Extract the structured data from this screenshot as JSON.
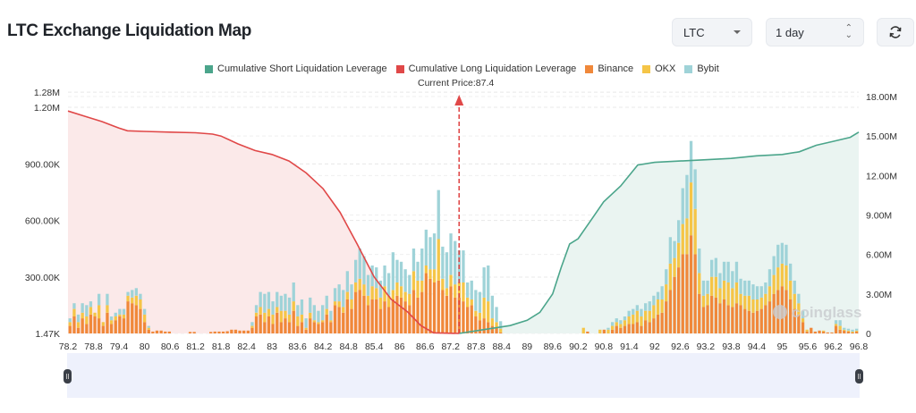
{
  "header": {
    "title": "LTC Exchange Liquidation Map",
    "coin_select": "LTC",
    "range_select": "1 day",
    "refresh_icon": "refresh-icon"
  },
  "chart_data": {
    "type": "bar",
    "title": "LTC Exchange Liquidation Map",
    "current_price_label": "Current Price:87.4",
    "current_price": 87.4,
    "legend": [
      {
        "name": "Cumulative Short Liquidation Leverage",
        "color": "#4ba58b"
      },
      {
        "name": "Cumulative Long Liquidation Leverage",
        "color": "#e04848"
      },
      {
        "name": "Binance",
        "color": "#f0883a"
      },
      {
        "name": "OKX",
        "color": "#f5c547"
      },
      {
        "name": "Bybit",
        "color": "#9fd3d8"
      }
    ],
    "legend_position": "top-center",
    "watermark": "coinglass",
    "x_range": [
      78.2,
      96.8
    ],
    "x_step": 0.1,
    "x_ticks": [
      "78.2",
      "78.8",
      "79.4",
      "80",
      "80.6",
      "81.2",
      "81.8",
      "82.4",
      "83",
      "83.6",
      "84.2",
      "84.8",
      "85.4",
      "86",
      "86.6",
      "87.2",
      "87.8",
      "88.4",
      "89",
      "89.6",
      "90.2",
      "90.8",
      "91.4",
      "92",
      "92.6",
      "93.2",
      "93.8",
      "94.4",
      "95",
      "95.6",
      "96.2",
      "96.8"
    ],
    "y_left": {
      "ticks": [
        "1.47K",
        "300.00K",
        "600.00K",
        "900.00K",
        "1.20M",
        "1.28M"
      ],
      "values": [
        1470,
        300000,
        600000,
        900000,
        1200000,
        1280000
      ],
      "range": [
        1470,
        1280000
      ]
    },
    "y_right": {
      "ticks": [
        "0",
        "3.00M",
        "6.00M",
        "9.00M",
        "12.00M",
        "15.00M",
        "18.00M"
      ],
      "values": [
        0,
        3000000,
        6000000,
        9000000,
        12000000,
        15000000,
        18000000
      ],
      "range": [
        0,
        18000000
      ]
    },
    "grid": true,
    "series": [
      {
        "name": "Binance",
        "stack": "left",
        "values": [
          40,
          90,
          30,
          80,
          50,
          100,
          90,
          80,
          40,
          110,
          50,
          70,
          90,
          80,
          170,
          160,
          150,
          130,
          60,
          20,
          10,
          15,
          15,
          10,
          10,
          0,
          0,
          0,
          0,
          8,
          8,
          0,
          0,
          0,
          8,
          10,
          10,
          10,
          12,
          20,
          20,
          15,
          15,
          15,
          30,
          90,
          100,
          60,
          90,
          50,
          110,
          60,
          80,
          60,
          120,
          40,
          60,
          20,
          80,
          60,
          50,
          60,
          100,
          60,
          150,
          140,
          110,
          180,
          130,
          220,
          230,
          200,
          150,
          180,
          180,
          130,
          170,
          140,
          180,
          200,
          190,
          170,
          150,
          230,
          190,
          220,
          320,
          290,
          270,
          280,
          230,
          200,
          250,
          190,
          190,
          170,
          140,
          150,
          90,
          70,
          80,
          60,
          40,
          30,
          5,
          0,
          0,
          0,
          0,
          0,
          0,
          0,
          0,
          0,
          0,
          0,
          0,
          0,
          0,
          0,
          0,
          0,
          0,
          0,
          0,
          10,
          0,
          0,
          0,
          20,
          0,
          20,
          40,
          30,
          40,
          50,
          50,
          60,
          40,
          70,
          60,
          80,
          100,
          110,
          170,
          230,
          300,
          350,
          420,
          420,
          520,
          420,
          210,
          140,
          150,
          200,
          190,
          160,
          180,
          150,
          140,
          160,
          150,
          130,
          120,
          110,
          120,
          130,
          150,
          170,
          210,
          230,
          250,
          230,
          180,
          130,
          100,
          60,
          10,
          30,
          10,
          15,
          10,
          5,
          5,
          40,
          20,
          15,
          10,
          5,
          10
        ],
        "_note": "values in K, approximate"
      },
      {
        "name": "OKX",
        "stack": "left",
        "values": [
          20,
          40,
          30,
          30,
          40,
          40,
          20,
          70,
          20,
          40,
          20,
          20,
          10,
          20,
          30,
          30,
          50,
          50,
          40,
          10,
          0,
          0,
          0,
          0,
          0,
          0,
          0,
          0,
          0,
          0,
          0,
          0,
          0,
          0,
          0,
          0,
          0,
          0,
          0,
          0,
          0,
          0,
          0,
          0,
          10,
          20,
          40,
          50,
          40,
          50,
          30,
          60,
          40,
          40,
          50,
          50,
          40,
          10,
          30,
          10,
          10,
          10,
          30,
          10,
          20,
          30,
          30,
          40,
          50,
          50,
          60,
          60,
          50,
          70,
          60,
          60,
          80,
          60,
          50,
          70,
          60,
          50,
          60,
          100,
          90,
          60,
          40,
          50,
          70,
          220,
          60,
          40,
          60,
          70,
          80,
          100,
          50,
          30,
          30,
          40,
          110,
          110,
          40,
          30,
          20,
          0,
          0,
          0,
          0,
          0,
          0,
          0,
          0,
          0,
          0,
          0,
          0,
          0,
          0,
          0,
          0,
          0,
          0,
          0,
          30,
          0,
          0,
          0,
          20,
          0,
          20,
          20,
          20,
          20,
          30,
          40,
          50,
          60,
          50,
          50,
          60,
          70,
          80,
          70,
          90,
          140,
          100,
          130,
          160,
          190,
          280,
          240,
          110,
          60,
          60,
          100,
          110,
          80,
          100,
          120,
          100,
          110,
          60,
          70,
          80,
          70,
          60,
          60,
          60,
          80,
          100,
          120,
          120,
          130,
          100,
          80,
          60,
          20,
          10,
          0,
          0,
          0,
          5,
          0,
          0,
          10,
          20,
          5,
          5,
          5,
          5
        ],
        "_note": "values in K, approximate"
      },
      {
        "name": "Bybit",
        "stack": "left",
        "values": [
          20,
          30,
          40,
          50,
          60,
          30,
          0,
          60,
          0,
          60,
          20,
          20,
          30,
          30,
          20,
          40,
          40,
          30,
          30,
          10,
          0,
          0,
          0,
          0,
          0,
          0,
          0,
          0,
          0,
          0,
          0,
          0,
          0,
          0,
          0,
          0,
          0,
          0,
          0,
          0,
          0,
          0,
          0,
          0,
          20,
          40,
          80,
          100,
          90,
          70,
          80,
          80,
          90,
          90,
          100,
          60,
          80,
          50,
          80,
          80,
          60,
          80,
          70,
          50,
          70,
          90,
          90,
          110,
          80,
          120,
          160,
          150,
          110,
          110,
          110,
          90,
          110,
          120,
          200,
          120,
          130,
          120,
          100,
          120,
          100,
          170,
          190,
          170,
          190,
          260,
          170,
          190,
          220,
          230,
          170,
          170,
          80,
          100,
          110,
          110,
          160,
          190,
          120,
          80,
          40,
          0,
          0,
          0,
          0,
          0,
          0,
          0,
          0,
          0,
          0,
          0,
          0,
          0,
          0,
          0,
          0,
          0,
          0,
          0,
          0,
          0,
          0,
          0,
          0,
          0,
          10,
          20,
          20,
          20,
          20,
          30,
          30,
          30,
          40,
          40,
          50,
          50,
          40,
          70,
          80,
          140,
          90,
          120,
          190,
          230,
          220,
          210,
          130,
          80,
          70,
          90,
          100,
          80,
          100,
          110,
          90,
          110,
          80,
          80,
          80,
          80,
          70,
          60,
          60,
          90,
          100,
          120,
          110,
          110,
          90,
          70,
          50,
          40,
          0,
          0,
          0,
          0,
          0,
          0,
          0,
          20,
          30,
          10,
          10,
          10,
          10
        ],
        "_note": "values in K, approximate"
      },
      {
        "name": "Cumulative Long Liquidation Leverage",
        "axis": "right",
        "x": [
          78.2,
          78.6,
          79.0,
          79.4,
          79.6,
          80.0,
          80.6,
          81.2,
          81.6,
          81.8,
          82.2,
          82.6,
          83.0,
          83.4,
          83.8,
          84.2,
          84.6,
          85.0,
          85.4,
          85.8,
          86.2,
          86.5,
          86.8,
          87.4
        ],
        "values": [
          16.9,
          16.5,
          16.1,
          15.6,
          15.4,
          15.35,
          15.3,
          15.25,
          15.15,
          15.0,
          14.4,
          13.9,
          13.6,
          13.1,
          12.2,
          11.0,
          9.2,
          6.8,
          4.3,
          2.6,
          1.6,
          0.6,
          0.05,
          0.0
        ]
      },
      {
        "name": "Cumulative Short Liquidation Leverage",
        "axis": "right",
        "x": [
          87.4,
          88.0,
          88.6,
          89.0,
          89.3,
          89.6,
          89.8,
          90.0,
          90.2,
          90.5,
          90.8,
          91.2,
          91.6,
          92.0,
          92.6,
          93.2,
          93.8,
          94.4,
          95.0,
          95.4,
          95.8,
          96.2,
          96.6,
          96.8
        ],
        "values": [
          0.0,
          0.3,
          0.6,
          1.0,
          1.6,
          3.0,
          5.0,
          6.8,
          7.2,
          8.6,
          10.0,
          11.2,
          12.8,
          13.0,
          13.1,
          13.2,
          13.3,
          13.5,
          13.6,
          13.8,
          14.3,
          14.6,
          14.9,
          15.3
        ]
      }
    ]
  },
  "slider": {
    "left_handle": "range-start-handle",
    "right_handle": "range-end-handle"
  }
}
